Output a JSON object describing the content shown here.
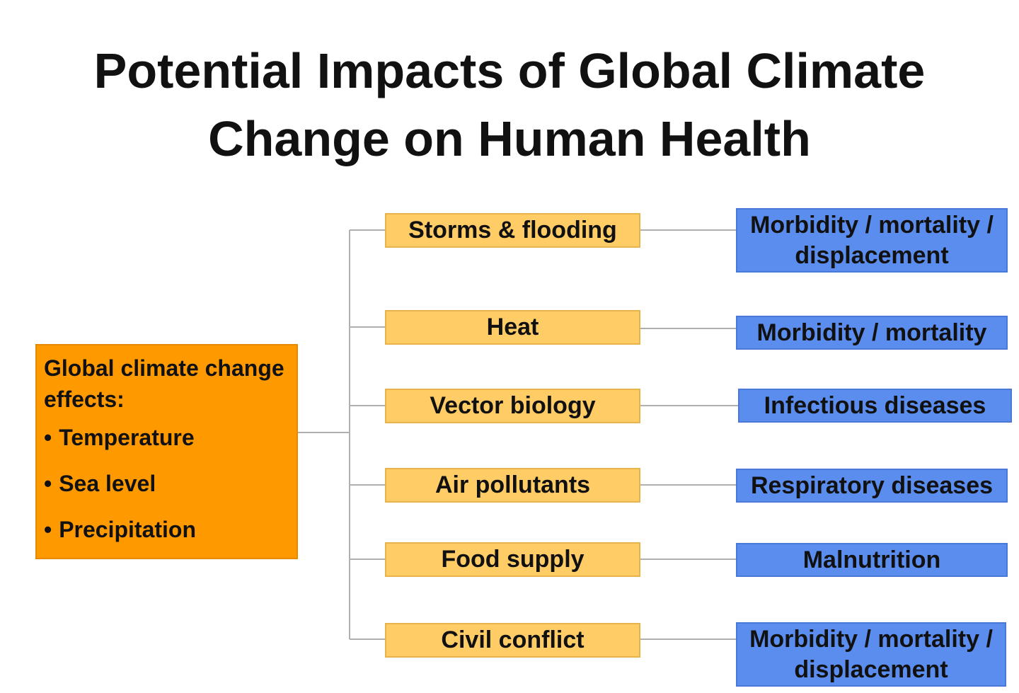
{
  "title": {
    "line1": "Potential Impacts of Global Climate",
    "line2": "Change on Human Health"
  },
  "source": {
    "heading": "Global climate change effects:",
    "items": [
      "Temperature",
      "Sea level",
      "Precipitation"
    ],
    "bullet": "•"
  },
  "pathways": [
    {
      "cause": "Storms & flooding",
      "effect": "Morbidity / mortality / displacement"
    },
    {
      "cause": "Heat",
      "effect": "Morbidity / mortality"
    },
    {
      "cause": "Vector biology",
      "effect": "Infectious diseases"
    },
    {
      "cause": "Air pollutants",
      "effect": "Respiratory diseases"
    },
    {
      "cause": "Food supply",
      "effect": "Malnutrition"
    },
    {
      "cause": "Civil conflict",
      "effect": "Morbidity / mortality / displacement"
    }
  ],
  "colors": {
    "source_fill": "#ff9900",
    "cause_fill": "#ffcc66",
    "effect_fill": "#5b8def",
    "connector": "#b0b0b0"
  }
}
